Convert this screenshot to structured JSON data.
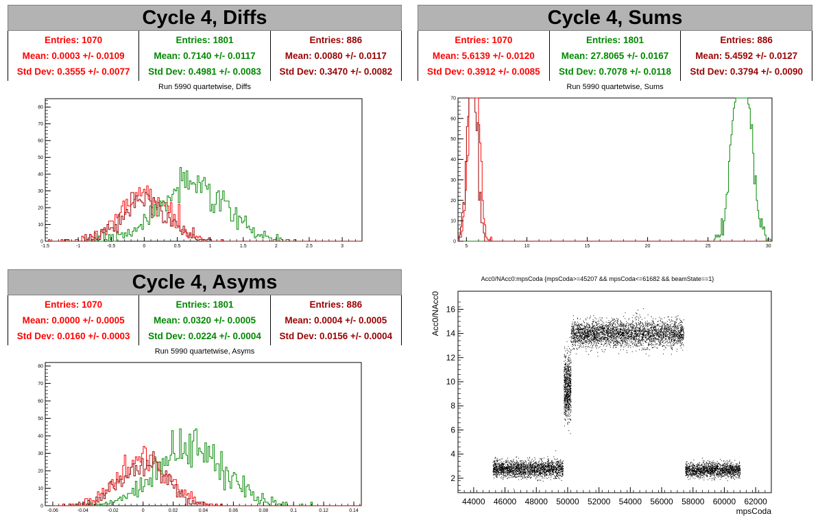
{
  "colors": {
    "red": "#ff0000",
    "green": "#008800",
    "darkred": "#990000",
    "black": "#000000"
  },
  "panels": [
    {
      "title": "Cycle 4, Diffs",
      "subtitle": "Run 5990 quartetwise, Diffs",
      "stats": [
        {
          "entries": "Entries: 1070",
          "mean": "Mean: 0.0003 +/- 0.0109",
          "std": "Std Dev: 0.3555 +/- 0.0077",
          "color": "#ff0000"
        },
        {
          "entries": "Entries: 1801",
          "mean": "Mean: 0.7140 +/- 0.0117",
          "std": "Std Dev: 0.4981 +/- 0.0083",
          "color": "#008800"
        },
        {
          "entries": "Entries: 886",
          "mean": "Mean: 0.0080 +/- 0.0117",
          "std": "Std Dev: 0.3470 +/- 0.0082",
          "color": "#990000"
        }
      ]
    },
    {
      "title": "Cycle 4, Sums",
      "subtitle": "Run 5990 quartetwise, Sums",
      "stats": [
        {
          "entries": "Entries: 1070",
          "mean": "Mean: 5.6139 +/- 0.0120",
          "std": "Std Dev: 0.3912 +/- 0.0085",
          "color": "#ff0000"
        },
        {
          "entries": "Entries: 1801",
          "mean": "Mean: 27.8065 +/- 0.0167",
          "std": "Std Dev: 0.7078 +/- 0.0118",
          "color": "#008800"
        },
        {
          "entries": "Entries: 886",
          "mean": "Mean: 5.4592 +/- 0.0127",
          "std": "Std Dev: 0.3794 +/- 0.0090",
          "color": "#990000"
        }
      ]
    },
    {
      "title": "Cycle 4, Asyms",
      "subtitle": "Run 5990 quartetwise, Asyms",
      "stats": [
        {
          "entries": "Entries: 1070",
          "mean": "Mean: 0.0000 +/- 0.0005",
          "std": "Std Dev: 0.0160 +/- 0.0003",
          "color": "#ff0000"
        },
        {
          "entries": "Entries: 1801",
          "mean": "Mean: 0.0320 +/- 0.0005",
          "std": "Std Dev: 0.0224 +/- 0.0004",
          "color": "#008800"
        },
        {
          "entries": "Entries: 886",
          "mean": "Mean: 0.0004 +/- 0.0005",
          "std": "Std Dev: 0.0156 +/- 0.0004",
          "color": "#990000"
        }
      ]
    }
  ],
  "chart_data": [
    {
      "type": "histogram",
      "xlim": [
        -1.5,
        3.3
      ],
      "ylim": [
        0,
        85
      ],
      "xticks": [
        -1.5,
        -1,
        -0.5,
        0,
        0.5,
        1,
        1.5,
        2,
        2.5,
        3
      ],
      "yticks": [
        0,
        10,
        20,
        30,
        40,
        50,
        60,
        70,
        80
      ],
      "series": [
        {
          "color": "#ff0000",
          "mean": 0.0003,
          "std": 0.3555,
          "entries": 1070
        },
        {
          "color": "#008800",
          "mean": 0.714,
          "std": 0.4981,
          "entries": 1801
        },
        {
          "color": "#990000",
          "mean": 0.008,
          "std": 0.347,
          "entries": 886
        }
      ]
    },
    {
      "type": "histogram",
      "xlim": [
        4.3,
        30.3
      ],
      "ylim": [
        0,
        70
      ],
      "xticks": [
        5,
        10,
        15,
        20,
        25,
        30
      ],
      "yticks": [
        0,
        10,
        20,
        30,
        40,
        50,
        60,
        70
      ],
      "series": [
        {
          "color": "#ff0000",
          "mean": 5.6139,
          "std": 0.3912,
          "entries": 1070
        },
        {
          "color": "#008800",
          "mean": 27.8065,
          "std": 0.7078,
          "entries": 1801
        },
        {
          "color": "#990000",
          "mean": 5.4592,
          "std": 0.3794,
          "entries": 886
        }
      ]
    },
    {
      "type": "histogram",
      "xlim": [
        -0.065,
        0.145
      ],
      "ylim": [
        0,
        82
      ],
      "xticks": [
        -0.06,
        -0.04,
        -0.02,
        0,
        0.02,
        0.04,
        0.06,
        0.08,
        0.1,
        0.12,
        0.14
      ],
      "yticks": [
        0,
        10,
        20,
        30,
        40,
        50,
        60,
        70,
        80
      ],
      "series": [
        {
          "color": "#ff0000",
          "mean": 0.0,
          "std": 0.016,
          "entries": 1070
        },
        {
          "color": "#008800",
          "mean": 0.032,
          "std": 0.0224,
          "entries": 1801
        },
        {
          "color": "#990000",
          "mean": 0.0004,
          "std": 0.0156,
          "entries": 886
        }
      ]
    },
    {
      "type": "scatter",
      "title": "Acc0/NAcc0:mpsCoda {mpsCoda>=45207 && mpsCoda<=61682 && beamState==1}",
      "xlabel": "mpsCoda",
      "ylabel": "Acc0/NAcc0",
      "xlim": [
        43000,
        63000
      ],
      "ylim": [
        0.8,
        17.5
      ],
      "xticks": [
        44000,
        46000,
        48000,
        50000,
        52000,
        54000,
        56000,
        58000,
        60000,
        62000
      ],
      "yticks": [
        2,
        4,
        6,
        8,
        10,
        12,
        14,
        16
      ],
      "clusters": [
        {
          "x_range": [
            45207,
            49700
          ],
          "y_center": 2.8,
          "y_spread": 0.35
        },
        {
          "x_range": [
            49750,
            50200
          ],
          "y_center": 9.5,
          "y_spread": 1.1
        },
        {
          "x_range": [
            50200,
            57400
          ],
          "y_center": 14.0,
          "y_spread": 0.55
        },
        {
          "x_range": [
            57500,
            61000
          ],
          "y_center": 2.7,
          "y_spread": 0.3
        }
      ]
    }
  ]
}
